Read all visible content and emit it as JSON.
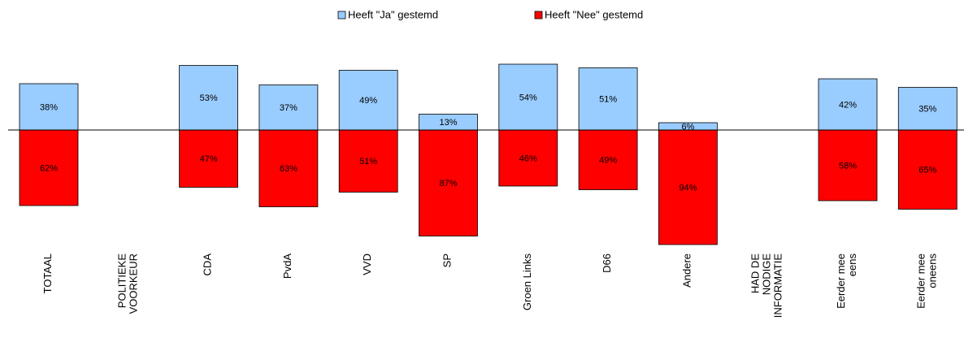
{
  "chart_data": {
    "type": "diverging_bar",
    "categories": [
      "TOTAAL",
      "POLITIEKE\nVOORKEUR",
      "CDA",
      "PvdA",
      "VVD",
      "SP",
      "Groen Links",
      "D66",
      "Andere",
      "HAD DE\nNODIGE\nINFORMATIE",
      "Eerder mee\neens",
      "Eerder mee\noneens"
    ],
    "series": [
      {
        "name": "Heeft \"Ja\" gestemd",
        "color": "#99ccff",
        "values": [
          38,
          null,
          53,
          37,
          49,
          13,
          54,
          51,
          6,
          null,
          42,
          35
        ],
        "value_labels": [
          "38%",
          null,
          "53%",
          "37%",
          "49%",
          "13%",
          "54%",
          "51%",
          "6%",
          null,
          "42%",
          "35%"
        ]
      },
      {
        "name": "Heeft \"Nee\" gestemd",
        "color": "#ff0000",
        "values": [
          62,
          null,
          47,
          63,
          51,
          87,
          46,
          49,
          94,
          null,
          58,
          65
        ],
        "value_labels": [
          "62%",
          null,
          "47%",
          "63%",
          "51%",
          "87%",
          "46%",
          "49%",
          "94%",
          null,
          "58%",
          "65%"
        ]
      }
    ]
  }
}
